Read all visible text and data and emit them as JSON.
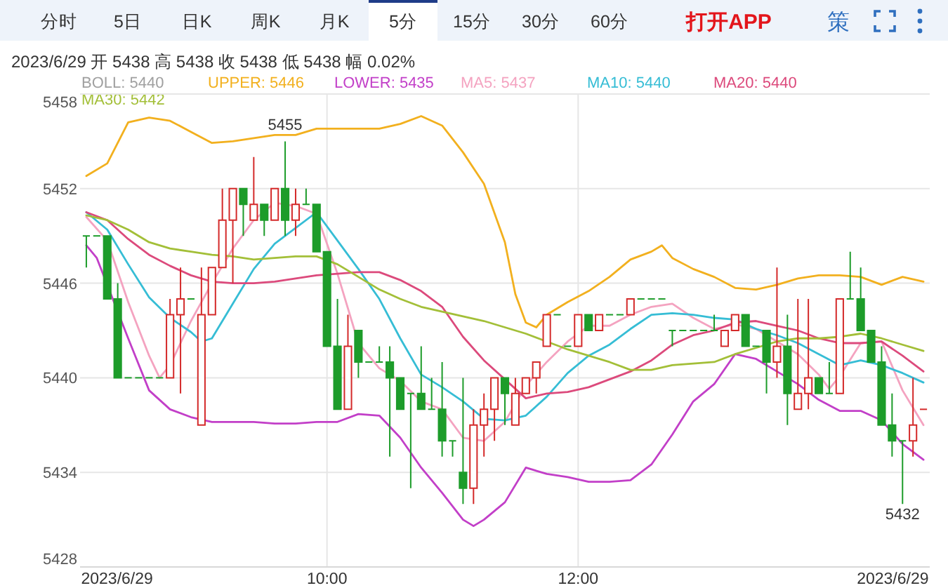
{
  "chart_data": {
    "type": "candlestick",
    "title": "2023/6/29 开 5438 高 5438 收 5438 低 5438 幅 0.02%",
    "x": [
      "2023-06-29T08:05",
      "2023-06-29T08:10",
      "2023-06-29T08:15",
      "2023-06-29T08:20",
      "2023-06-29T08:25",
      "2023-06-29T08:30",
      "2023-06-29T08:35",
      "2023-06-29T08:40",
      "2023-06-29T08:45",
      "2023-06-29T08:50",
      "2023-06-29T08:55",
      "2023-06-29T09:00",
      "2023-06-29T09:05",
      "2023-06-29T09:10",
      "2023-06-29T09:15",
      "2023-06-29T09:20",
      "2023-06-29T09:25",
      "2023-06-29T09:30",
      "2023-06-29T09:35",
      "2023-06-29T09:40",
      "2023-06-29T09:45",
      "2023-06-29T09:50",
      "2023-06-29T09:55",
      "2023-06-29T10:00",
      "2023-06-29T10:05",
      "2023-06-29T10:10",
      "2023-06-29T10:15",
      "2023-06-29T10:20",
      "2023-06-29T10:25",
      "2023-06-29T10:30",
      "2023-06-29T10:35",
      "2023-06-29T10:40",
      "2023-06-29T10:45",
      "2023-06-29T10:50",
      "2023-06-29T10:55",
      "2023-06-29T11:00",
      "2023-06-29T11:05",
      "2023-06-29T11:10",
      "2023-06-29T11:15",
      "2023-06-29T11:20",
      "2023-06-29T11:25",
      "2023-06-29T11:30",
      "2023-06-29T11:35",
      "2023-06-29T11:40",
      "2023-06-29T11:45",
      "2023-06-29T11:50",
      "2023-06-29T11:55",
      "2023-06-29T12:00",
      "2023-06-29T12:05",
      "2023-06-29T12:10",
      "2023-06-29T12:15",
      "2023-06-29T12:20",
      "2023-06-29T12:25",
      "2023-06-29T12:30",
      "2023-06-29T12:35",
      "2023-06-29T12:40",
      "2023-06-29T12:45",
      "2023-06-29T12:50",
      "2023-06-29T12:55",
      "2023-06-29T13:00",
      "2023-06-29T13:05",
      "2023-06-29T13:10",
      "2023-06-29T13:15",
      "2023-06-29T13:20",
      "2023-06-29T13:25",
      "2023-06-29T13:30",
      "2023-06-29T13:35",
      "2023-06-29T13:40",
      "2023-06-29T13:45",
      "2023-06-29T13:50",
      "2023-06-29T13:55",
      "2023-06-29T14:00",
      "2023-06-29T14:05",
      "2023-06-29T14:10",
      "2023-06-29T14:15",
      "2023-06-29T14:20",
      "2023-06-29T14:25",
      "2023-06-29T14:30",
      "2023-06-29T14:35",
      "2023-06-29T14:40",
      "2023-06-29T14:45"
    ],
    "ohlc": [
      [
        5449,
        5449,
        5447,
        5449
      ],
      [
        5449,
        5449,
        5449,
        5449
      ],
      [
        5449,
        5449,
        5445,
        5445
      ],
      [
        5445,
        5446,
        5440,
        5440
      ],
      [
        5440,
        5440,
        5440,
        5440
      ],
      [
        5440,
        5440,
        5440,
        5440
      ],
      [
        5440,
        5440,
        5440,
        5440
      ],
      [
        5440,
        5440,
        5440,
        5440
      ],
      [
        5440,
        5445,
        5440,
        5444
      ],
      [
        5444,
        5447,
        5439,
        5445
      ],
      [
        5445,
        5445,
        5445,
        5445
      ],
      [
        5437,
        5447,
        5437,
        5444
      ],
      [
        5444,
        5447,
        5444,
        5447
      ],
      [
        5447,
        5452,
        5447,
        5450
      ],
      [
        5450,
        5452,
        5446,
        5452
      ],
      [
        5452,
        5452,
        5449,
        5451
      ],
      [
        5450,
        5454,
        5450,
        5451
      ],
      [
        5451,
        5451,
        5449,
        5450
      ],
      [
        5450,
        5452,
        5450,
        5452
      ],
      [
        5452,
        5455,
        5449,
        5450
      ],
      [
        5450,
        5452,
        5449,
        5451
      ],
      [
        5451,
        5452,
        5451,
        5451
      ],
      [
        5451,
        5451,
        5448,
        5448
      ],
      [
        5448,
        5448,
        5442,
        5442
      ],
      [
        5442,
        5445,
        5438,
        5438
      ],
      [
        5438,
        5444,
        5438,
        5442
      ],
      [
        5443,
        5443,
        5440,
        5441
      ],
      [
        5441,
        5441,
        5441,
        5441
      ],
      [
        5441,
        5442,
        5441,
        5441
      ],
      [
        5441,
        5442,
        5435,
        5440
      ],
      [
        5440,
        5440,
        5438,
        5438
      ],
      [
        5439,
        5439,
        5433,
        5439
      ],
      [
        5439,
        5442,
        5438,
        5438
      ],
      [
        5438,
        5440,
        5438,
        5438
      ],
      [
        5438,
        5441,
        5435,
        5436
      ],
      [
        5436,
        5436,
        5435,
        5436
      ],
      [
        5434,
        5440,
        5432,
        5433
      ],
      [
        5433,
        5438,
        5432,
        5437
      ],
      [
        5437,
        5439,
        5435,
        5438
      ],
      [
        5438,
        5440,
        5436,
        5440
      ],
      [
        5440,
        5440,
        5437,
        5439
      ],
      [
        5437,
        5440,
        5437,
        5439
      ],
      [
        5439,
        5440,
        5439,
        5440
      ],
      [
        5440,
        5441,
        5439,
        5441
      ],
      [
        5442,
        5444,
        5442,
        5444
      ],
      [
        5444,
        5444,
        5444,
        5444
      ],
      [
        5442,
        5442,
        5442,
        5442
      ],
      [
        5442,
        5444,
        5442,
        5444
      ],
      [
        5444,
        5444,
        5443,
        5443
      ],
      [
        5443,
        5444,
        5443,
        5444
      ],
      [
        5444,
        5444,
        5444,
        5444
      ],
      [
        5444,
        5444,
        5444,
        5444
      ],
      [
        5444,
        5445,
        5444,
        5445
      ],
      [
        5445,
        5445,
        5445,
        5445
      ],
      [
        5445,
        5445,
        5445,
        5445
      ],
      [
        5445,
        5445,
        5445,
        5445
      ],
      [
        5443,
        5443,
        5442,
        5443
      ],
      [
        5443,
        5443,
        5443,
        5443
      ],
      [
        5443,
        5443,
        5443,
        5443
      ],
      [
        5443,
        5443,
        5443,
        5443
      ],
      [
        5443,
        5444,
        5443,
        5443
      ],
      [
        5442,
        5443,
        5442,
        5443
      ],
      [
        5443,
        5444,
        5443,
        5444
      ],
      [
        5444,
        5444,
        5442,
        5442
      ],
      [
        5442,
        5442,
        5442,
        5442
      ],
      [
        5443,
        5443,
        5439,
        5441
      ],
      [
        5441,
        5447,
        5440,
        5442
      ],
      [
        5442,
        5444,
        5437,
        5439
      ],
      [
        5438,
        5445,
        5438,
        5439
      ],
      [
        5439,
        5445,
        5438,
        5440
      ],
      [
        5440,
        5440,
        5439,
        5439
      ],
      [
        5439,
        5441,
        5439,
        5439
      ],
      [
        5439,
        5445,
        5439,
        5445
      ],
      [
        5445,
        5448,
        5445,
        5445
      ],
      [
        5445,
        5447,
        5443,
        5443
      ],
      [
        5443,
        5443,
        5441,
        5441
      ],
      [
        5441,
        5442,
        5437,
        5437
      ],
      [
        5437,
        5439,
        5435,
        5436
      ],
      [
        5436,
        5436,
        5432,
        5436
      ],
      [
        5436,
        5440,
        5435,
        5437
      ],
      [
        5438,
        5438,
        5438,
        5438
      ]
    ],
    "colors": [
      "#1d9c2a",
      "#1d9c2a",
      "#1d9c2a",
      "#1d9c2a",
      "#1d9c2a",
      "#1d9c2a",
      "#1d9c2a",
      "#1d9c2a",
      "#d42a2a",
      "#d42a2a",
      "#1d9c2a",
      "#d42a2a",
      "#d42a2a",
      "#d42a2a",
      "#d42a2a",
      "#1d9c2a",
      "#d42a2a",
      "#1d9c2a",
      "#d42a2a",
      "#1d9c2a",
      "#d42a2a",
      "#1d9c2a",
      "#1d9c2a",
      "#1d9c2a",
      "#1d9c2a",
      "#d42a2a",
      "#1d9c2a",
      "#1d9c2a",
      "#1d9c2a",
      "#1d9c2a",
      "#1d9c2a",
      "#1d9c2a",
      "#1d9c2a",
      "#1d9c2a",
      "#1d9c2a",
      "#1d9c2a",
      "#1d9c2a",
      "#d42a2a",
      "#d42a2a",
      "#d42a2a",
      "#1d9c2a",
      "#d42a2a",
      "#d42a2a",
      "#d42a2a",
      "#d42a2a",
      "#1d9c2a",
      "#1d9c2a",
      "#d42a2a",
      "#1d9c2a",
      "#d42a2a",
      "#1d9c2a",
      "#1d9c2a",
      "#d42a2a",
      "#1d9c2a",
      "#1d9c2a",
      "#1d9c2a",
      "#1d9c2a",
      "#1d9c2a",
      "#1d9c2a",
      "#1d9c2a",
      "#1d9c2a",
      "#d42a2a",
      "#d42a2a",
      "#1d9c2a",
      "#1d9c2a",
      "#1d9c2a",
      "#d42a2a",
      "#1d9c2a",
      "#d42a2a",
      "#d42a2a",
      "#1d9c2a",
      "#1d9c2a",
      "#d42a2a",
      "#1d9c2a",
      "#1d9c2a",
      "#1d9c2a",
      "#1d9c2a",
      "#1d9c2a",
      "#1d9c2a",
      "#d42a2a",
      "#d42a2a"
    ],
    "series": [
      {
        "name": "UPPER: 5446",
        "type": "line",
        "color": "#f2b01e",
        "x": [
          "2023-06-29T08:05",
          "2023-06-29T08:15",
          "2023-06-29T08:25",
          "2023-06-29T08:35",
          "2023-06-29T08:45",
          "2023-06-29T08:55",
          "2023-06-29T09:05",
          "2023-06-29T09:15",
          "2023-06-29T09:25",
          "2023-06-29T09:35",
          "2023-06-29T09:45",
          "2023-06-29T09:55",
          "2023-06-29T10:05",
          "2023-06-29T10:15",
          "2023-06-29T10:25",
          "2023-06-29T10:35",
          "2023-06-29T10:45",
          "2023-06-29T10:55",
          "2023-06-29T11:05",
          "2023-06-29T11:15",
          "2023-06-29T11:25",
          "2023-06-29T11:30",
          "2023-06-29T11:35",
          "2023-06-29T11:40",
          "2023-06-29T11:45",
          "2023-06-29T11:55",
          "2023-06-29T12:05",
          "2023-06-29T12:15",
          "2023-06-29T12:25",
          "2023-06-29T12:35",
          "2023-06-29T12:40",
          "2023-06-29T12:45",
          "2023-06-29T12:55",
          "2023-06-29T13:05",
          "2023-06-29T13:15",
          "2023-06-29T13:25",
          "2023-06-29T13:35",
          "2023-06-29T13:45",
          "2023-06-29T13:55",
          "2023-06-29T14:05",
          "2023-06-29T14:15",
          "2023-06-29T14:25",
          "2023-06-29T14:35",
          "2023-06-29T14:45"
        ],
        "values": [
          5452.8,
          5453.6,
          5456.2,
          5456.5,
          5456.3,
          5455.6,
          5454.9,
          5455.0,
          5455.2,
          5455.4,
          5455.4,
          5455.8,
          5455.8,
          5455.8,
          5455.8,
          5456.1,
          5456.6,
          5456.0,
          5454.3,
          5452.3,
          5448.6,
          5445.3,
          5443.5,
          5443.2,
          5444.0,
          5444.8,
          5445.5,
          5446.4,
          5447.5,
          5448.0,
          5448.4,
          5447.6,
          5446.9,
          5446.4,
          5445.7,
          5445.6,
          5445.9,
          5446.3,
          5446.5,
          5446.5,
          5446.4,
          5445.9,
          5446.4,
          5446.1
        ]
      },
      {
        "name": "LOWER: 5435",
        "type": "line",
        "color": "#c23fc8",
        "x": [
          "2023-06-29T08:05",
          "2023-06-29T08:10",
          "2023-06-29T08:25",
          "2023-06-29T08:35",
          "2023-06-29T08:45",
          "2023-06-29T08:55",
          "2023-06-29T09:05",
          "2023-06-29T09:15",
          "2023-06-29T09:25",
          "2023-06-29T09:35",
          "2023-06-29T09:45",
          "2023-06-29T09:55",
          "2023-06-29T10:05",
          "2023-06-29T10:15",
          "2023-06-29T10:25",
          "2023-06-29T10:35",
          "2023-06-29T10:45",
          "2023-06-29T10:55",
          "2023-06-29T11:05",
          "2023-06-29T11:10",
          "2023-06-29T11:15",
          "2023-06-29T11:25",
          "2023-06-29T11:35",
          "2023-06-29T11:45",
          "2023-06-29T11:55",
          "2023-06-29T12:05",
          "2023-06-29T12:15",
          "2023-06-29T12:25",
          "2023-06-29T12:35",
          "2023-06-29T12:45",
          "2023-06-29T12:55",
          "2023-06-29T13:05",
          "2023-06-29T13:15",
          "2023-06-29T13:25",
          "2023-06-29T13:35",
          "2023-06-29T13:45",
          "2023-06-29T13:55",
          "2023-06-29T14:05",
          "2023-06-29T14:15",
          "2023-06-29T14:25",
          "2023-06-29T14:35",
          "2023-06-29T14:45"
        ],
        "values": [
          5448.4,
          5447.6,
          5442.5,
          5439.2,
          5438.0,
          5437.5,
          5437.2,
          5437.2,
          5437.2,
          5437.1,
          5437.1,
          5437.2,
          5437.2,
          5437.7,
          5437.6,
          5436.2,
          5434.3,
          5432.7,
          5431.0,
          5430.6,
          5431.0,
          5432.1,
          5434.3,
          5433.9,
          5433.7,
          5433.4,
          5433.4,
          5433.5,
          5434.5,
          5436.4,
          5438.5,
          5439.6,
          5441.5,
          5441.2,
          5440.4,
          5439.6,
          5438.6,
          5437.9,
          5437.9,
          5437.3,
          5435.8,
          5434.8
        ]
      },
      {
        "name": "MA5: 5437",
        "type": "line",
        "color": "#f4a3c0",
        "x": [
          "2023-06-29T08:05",
          "2023-06-29T08:15",
          "2023-06-29T08:25",
          "2023-06-29T08:35",
          "2023-06-29T08:40",
          "2023-06-29T08:45",
          "2023-06-29T08:55",
          "2023-06-29T09:05",
          "2023-06-29T09:15",
          "2023-06-29T09:25",
          "2023-06-29T09:35",
          "2023-06-29T09:45",
          "2023-06-29T09:55",
          "2023-06-29T10:05",
          "2023-06-29T10:15",
          "2023-06-29T10:25",
          "2023-06-29T10:35",
          "2023-06-29T10:45",
          "2023-06-29T10:55",
          "2023-06-29T11:05",
          "2023-06-29T11:15",
          "2023-06-29T11:25",
          "2023-06-29T11:35",
          "2023-06-29T11:45",
          "2023-06-29T11:55",
          "2023-06-29T12:05",
          "2023-06-29T12:15",
          "2023-06-29T12:25",
          "2023-06-29T12:35",
          "2023-06-29T12:45",
          "2023-06-29T12:55",
          "2023-06-29T13:05",
          "2023-06-29T13:15",
          "2023-06-29T13:25",
          "2023-06-29T13:35",
          "2023-06-29T13:45",
          "2023-06-29T13:55",
          "2023-06-29T14:00",
          "2023-06-29T14:05",
          "2023-06-29T14:15",
          "2023-06-29T14:25",
          "2023-06-29T14:35",
          "2023-06-29T14:45"
        ],
        "values": [
          5450.2,
          5448.7,
          5444.8,
          5441.4,
          5440.0,
          5440.8,
          5443.6,
          5446.0,
          5448.2,
          5450.0,
          5451.1,
          5450.9,
          5450.4,
          5446.6,
          5442.2,
          5440.6,
          5439.8,
          5438.5,
          5438.0,
          5436.2,
          5436.0,
          5437.2,
          5439.5,
          5441.0,
          5442.3,
          5443.3,
          5443.3,
          5444.0,
          5444.5,
          5444.7,
          5443.8,
          5443.1,
          5443.4,
          5443.1,
          5442.3,
          5441.5,
          5440.2,
          5439.3,
          5440.1,
          5442.2,
          5442.3,
          5439.2,
          5437.0
        ]
      },
      {
        "name": "MA10: 5440",
        "type": "line",
        "color": "#36bdd5",
        "x": [
          "2023-06-29T08:05",
          "2023-06-29T08:15",
          "2023-06-29T08:25",
          "2023-06-29T08:35",
          "2023-06-29T08:45",
          "2023-06-29T08:55",
          "2023-06-29T09:00",
          "2023-06-29T09:05",
          "2023-06-29T09:15",
          "2023-06-29T09:25",
          "2023-06-29T09:35",
          "2023-06-29T09:45",
          "2023-06-29T09:55",
          "2023-06-29T10:05",
          "2023-06-29T10:15",
          "2023-06-29T10:25",
          "2023-06-29T10:35",
          "2023-06-29T10:45",
          "2023-06-29T10:55",
          "2023-06-29T11:05",
          "2023-06-29T11:15",
          "2023-06-29T11:25",
          "2023-06-29T11:35",
          "2023-06-29T11:45",
          "2023-06-29T11:55",
          "2023-06-29T12:05",
          "2023-06-29T12:15",
          "2023-06-29T12:25",
          "2023-06-29T12:35",
          "2023-06-29T12:45",
          "2023-06-29T12:55",
          "2023-06-29T13:05",
          "2023-06-29T13:15",
          "2023-06-29T13:25",
          "2023-06-29T13:35",
          "2023-06-29T13:45",
          "2023-06-29T13:55",
          "2023-06-29T14:05",
          "2023-06-29T14:15",
          "2023-06-29T14:25",
          "2023-06-29T14:35",
          "2023-06-29T14:45"
        ],
        "values": [
          5450.5,
          5449.4,
          5447.2,
          5445.1,
          5443.8,
          5442.9,
          5442.3,
          5442.5,
          5444.7,
          5446.9,
          5448.5,
          5449.5,
          5450.5,
          5448.7,
          5446.9,
          5445.0,
          5442.5,
          5440.2,
          5439.4,
          5438.5,
          5437.4,
          5437.3,
          5437.6,
          5438.8,
          5440.3,
          5441.4,
          5442.1,
          5443.1,
          5444.0,
          5444.1,
          5444.0,
          5443.8,
          5443.7,
          5443.1,
          5442.7,
          5442.2,
          5441.5,
          5440.8,
          5441.1,
          5440.8,
          5440.3,
          5439.7
        ]
      },
      {
        "name": "MA20: 5440",
        "type": "line",
        "color": "#dc4a7c",
        "x": [
          "2023-06-29T08:05",
          "2023-06-29T08:15",
          "2023-06-29T08:25",
          "2023-06-29T08:35",
          "2023-06-29T08:45",
          "2023-06-29T08:55",
          "2023-06-29T09:05",
          "2023-06-29T09:15",
          "2023-06-29T09:25",
          "2023-06-29T09:35",
          "2023-06-29T09:45",
          "2023-06-29T09:55",
          "2023-06-29T10:05",
          "2023-06-29T10:15",
          "2023-06-29T10:25",
          "2023-06-29T10:35",
          "2023-06-29T10:45",
          "2023-06-29T10:55",
          "2023-06-29T11:05",
          "2023-06-29T11:15",
          "2023-06-29T11:25",
          "2023-06-29T11:35",
          "2023-06-29T11:45",
          "2023-06-29T11:55",
          "2023-06-29T12:05",
          "2023-06-29T12:15",
          "2023-06-29T12:25",
          "2023-06-29T12:35",
          "2023-06-29T12:45",
          "2023-06-29T12:55",
          "2023-06-29T13:05",
          "2023-06-29T13:15",
          "2023-06-29T13:25",
          "2023-06-29T13:35",
          "2023-06-29T13:45",
          "2023-06-29T13:55",
          "2023-06-29T14:05",
          "2023-06-29T14:15",
          "2023-06-29T14:25",
          "2023-06-29T14:35",
          "2023-06-29T14:45"
        ],
        "values": [
          5450.5,
          5450.0,
          5448.8,
          5447.8,
          5447.1,
          5446.5,
          5446.1,
          5446.0,
          5446.0,
          5446.1,
          5446.3,
          5446.5,
          5446.6,
          5446.7,
          5446.7,
          5446.2,
          5445.5,
          5444.5,
          5442.6,
          5441.1,
          5439.9,
          5438.7,
          5439.0,
          5439.1,
          5439.4,
          5439.9,
          5440.4,
          5441.1,
          5442.1,
          5442.7,
          5443.0,
          5443.5,
          5443.6,
          5443.3,
          5443.0,
          5442.5,
          5442.2,
          5442.2,
          5442.3,
          5441.4,
          5440.4
        ]
      },
      {
        "name": "MA30: 5442",
        "type": "line",
        "color": "#a3bf38",
        "x": [
          "2023-06-29T08:05",
          "2023-06-29T08:15",
          "2023-06-29T08:25",
          "2023-06-29T08:35",
          "2023-06-29T08:45",
          "2023-06-29T08:55",
          "2023-06-29T09:05",
          "2023-06-29T09:15",
          "2023-06-29T09:25",
          "2023-06-29T09:35",
          "2023-06-29T09:45",
          "2023-06-29T09:55",
          "2023-06-29T10:05",
          "2023-06-29T10:15",
          "2023-06-29T10:25",
          "2023-06-29T10:35",
          "2023-06-29T10:45",
          "2023-06-29T10:55",
          "2023-06-29T11:05",
          "2023-06-29T11:15",
          "2023-06-29T11:25",
          "2023-06-29T11:35",
          "2023-06-29T11:45",
          "2023-06-29T11:55",
          "2023-06-29T12:05",
          "2023-06-29T12:15",
          "2023-06-29T12:25",
          "2023-06-29T12:35",
          "2023-06-29T12:45",
          "2023-06-29T12:55",
          "2023-06-29T13:05",
          "2023-06-29T13:15",
          "2023-06-29T13:25",
          "2023-06-29T13:35",
          "2023-06-29T13:45",
          "2023-06-29T13:55",
          "2023-06-29T14:05",
          "2023-06-29T14:15",
          "2023-06-29T14:25",
          "2023-06-29T14:35",
          "2023-06-29T14:45"
        ],
        "values": [
          5450.3,
          5450.0,
          5449.4,
          5448.6,
          5448.2,
          5448.0,
          5447.8,
          5447.7,
          5447.5,
          5447.6,
          5447.7,
          5447.7,
          5447.2,
          5446.4,
          5445.6,
          5445.0,
          5444.5,
          5444.2,
          5443.9,
          5443.6,
          5443.2,
          5442.8,
          5442.3,
          5441.8,
          5441.4,
          5441.0,
          5440.5,
          5440.5,
          5440.8,
          5440.9,
          5441.0,
          5441.5,
          5441.9,
          5442.3,
          5442.5,
          5442.5,
          5442.6,
          5442.8,
          5442.5,
          5442.1,
          5441.7
        ]
      }
    ],
    "xlim": [
      "2023-06-29T08:02",
      "2023-06-29T14:48"
    ],
    "xticks": [
      {
        "value": "2023-06-29T08:05",
        "label": "2023/6/29"
      },
      {
        "value": "2023-06-29T10:00",
        "label": "10:00"
      },
      {
        "value": "2023-06-29T12:00",
        "label": "12:00"
      },
      {
        "value": "2023-06-29T14:45",
        "label": "2023/6/29"
      }
    ],
    "ylim": [
      5428,
      5458
    ],
    "yticks": [
      5428,
      5434,
      5440,
      5446,
      5452,
      5458
    ],
    "grid": true,
    "legend": "top",
    "annotations": [
      "分时",
      "5日",
      "日K",
      "周K",
      "月K",
      "5分",
      "15分",
      "30分",
      "60分",
      "打开APP",
      "策",
      "BOLL: 5440",
      {
        "text": "5455",
        "x": "2023-06-29T09:40",
        "y": 5455
      },
      {
        "text": "5432",
        "x": "2023-06-29T14:35",
        "y": 5432
      }
    ]
  }
}
